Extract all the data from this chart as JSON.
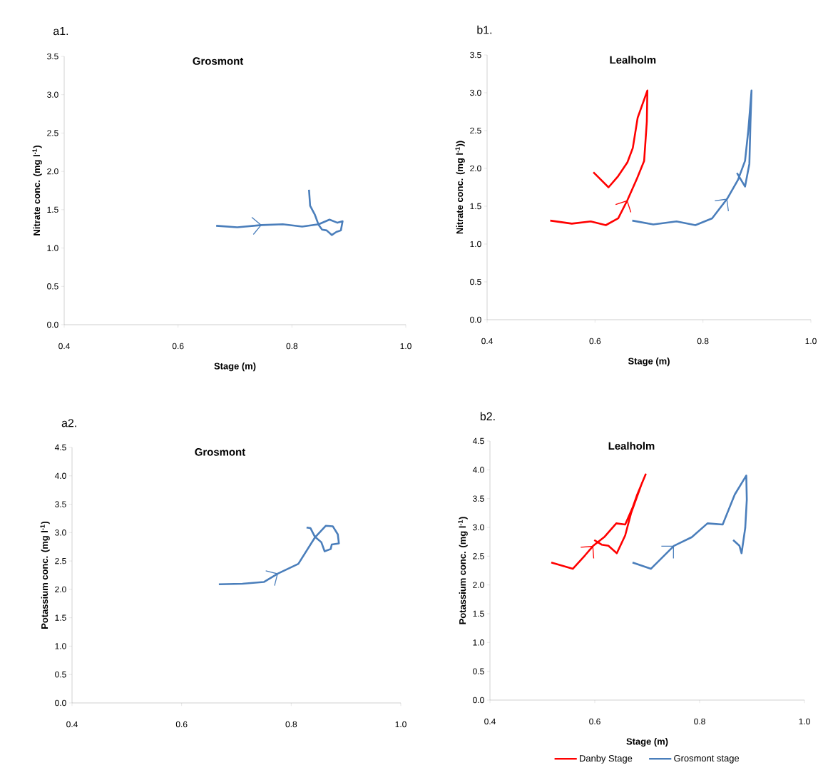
{
  "chart_data": [
    {
      "type": "line",
      "title": "Grosmont",
      "xlabel": "Stage (m)",
      "ylabel": "Nitrate conc. (mg l$^{-1}$)",
      "annotations": [
        "a1."
      ],
      "xlim": [
        0.4,
        1.0
      ],
      "ylim": [
        0,
        3.5
      ],
      "xticks": [
        {
          "value": 0.4,
          "label": "0.4"
        },
        {
          "value": 0.6,
          "label": "0.6"
        },
        {
          "value": 0.8,
          "label": "0.8"
        },
        {
          "value": 1.0,
          "label": "1.0"
        }
      ],
      "yticks": [
        {
          "value": 0,
          "label": "0.0"
        },
        0.5,
        {
          "value": 1,
          "label": "1.0"
        },
        1.5,
        {
          "value": 2,
          "label": "2.0"
        },
        2.5,
        {
          "value": 3,
          "label": "3.0"
        },
        3.5
      ],
      "series": [
        {
          "color": "#4a7ebb",
          "x": [
            0.667,
            0.704,
            0.747,
            0.784,
            0.818,
            0.847,
            0.866,
            0.88,
            0.889,
            0.886,
            0.878,
            0.87,
            0.861,
            0.853,
            0.847,
            0.84,
            0.832,
            0.83
          ],
          "values": [
            1.29,
            1.27,
            1.3,
            1.31,
            1.28,
            1.31,
            1.37,
            1.33,
            1.35,
            1.23,
            1.21,
            1.17,
            1.23,
            1.24,
            1.3,
            1.44,
            1.55,
            1.76
          ]
        }
      ]
    },
    {
      "type": "line",
      "title": "Lealholm",
      "xlabel": "Stage (m)",
      "ylabel": "Nitrate conc. (mg l$^{-1}$))",
      "annotations": [
        "b1."
      ],
      "xlim": [
        0.4,
        1.0
      ],
      "ylim": [
        0,
        3.5
      ],
      "xticks": [
        {
          "value": 0.4,
          "label": "0.4"
        },
        {
          "value": 0.6,
          "label": "0.6"
        },
        {
          "value": 0.8,
          "label": "0.8"
        },
        {
          "value": 1.0,
          "label": "1.0"
        }
      ],
      "yticks": [
        {
          "value": 0,
          "label": "0.0"
        },
        0.5,
        {
          "value": 1,
          "label": "1.0"
        },
        1.5,
        {
          "value": 2,
          "label": "2.0"
        },
        2.5,
        {
          "value": 3,
          "label": "3.0"
        },
        3.5
      ],
      "series": [
        {
          "color": "#ff0000",
          "x": [
            0.517,
            0.557,
            0.592,
            0.62,
            0.643,
            0.66,
            0.678,
            0.691,
            0.696,
            0.697,
            0.679,
            0.67,
            0.66,
            0.642,
            0.625,
            0.597
          ],
          "values": [
            1.31,
            1.27,
            1.3,
            1.25,
            1.34,
            1.58,
            1.87,
            2.1,
            2.62,
            3.03,
            2.67,
            2.27,
            2.08,
            1.89,
            1.75,
            1.95
          ]
        },
        {
          "color": "#4a7ebb",
          "x": [
            0.669,
            0.708,
            0.751,
            0.786,
            0.817,
            0.845,
            0.865,
            0.878,
            0.884,
            0.89,
            0.888,
            0.886,
            0.878,
            0.863
          ],
          "values": [
            1.31,
            1.26,
            1.3,
            1.25,
            1.34,
            1.6,
            1.85,
            2.1,
            2.5,
            3.03,
            2.6,
            2.06,
            1.76,
            1.94
          ]
        }
      ]
    },
    {
      "type": "line",
      "title": "Grosmont",
      "ylabel": "Potassium conc.  (mg l$^{-1}$)",
      "annotations": [
        "a2."
      ],
      "xlim": [
        0.4,
        1.0
      ],
      "ylim": [
        0,
        4.5
      ],
      "xticks": [
        {
          "value": 0.4,
          "label": "0.4"
        },
        {
          "value": 0.6,
          "label": "0.6"
        },
        {
          "value": 0.8,
          "label": "0.8"
        },
        {
          "value": 1.0,
          "label": "1.0"
        }
      ],
      "yticks": [
        {
          "value": 0,
          "label": "0.0"
        },
        0.5,
        {
          "value": 1,
          "label": "1.0"
        },
        1.5,
        {
          "value": 2,
          "label": "2.0"
        },
        2.5,
        {
          "value": 3,
          "label": "3.0"
        },
        3.5,
        {
          "value": 4,
          "label": "4.0"
        },
        4.5
      ],
      "series": [
        {
          "color": "#4a7ebb",
          "x": [
            0.668,
            0.711,
            0.75,
            0.776,
            0.813,
            0.843,
            0.863,
            0.876,
            0.885,
            0.887,
            0.874,
            0.872,
            0.861,
            0.855,
            0.843,
            0.835,
            0.828
          ],
          "values": [
            2.09,
            2.1,
            2.13,
            2.28,
            2.45,
            2.91,
            3.12,
            3.11,
            2.97,
            2.81,
            2.79,
            2.71,
            2.67,
            2.83,
            2.93,
            3.08,
            3.09
          ]
        }
      ]
    },
    {
      "type": "line",
      "title": "Lealholm",
      "xlabel": "Stage (m)",
      "ylabel": "Potassium conc.  (mg l$^{-1}$)",
      "annotations": [
        "b2."
      ],
      "legend": "bottom",
      "xlim": [
        0.4,
        1.0
      ],
      "ylim": [
        0,
        4.5
      ],
      "xticks": [
        {
          "value": 0.4,
          "label": "0.4"
        },
        {
          "value": 0.6,
          "label": "0.6"
        },
        {
          "value": 0.8,
          "label": "0.8"
        },
        {
          "value": 1.0,
          "label": "1.0"
        }
      ],
      "yticks": [
        {
          "value": 0,
          "label": "0.0"
        },
        0.5,
        {
          "value": 1,
          "label": "1.0"
        },
        1.5,
        {
          "value": 2,
          "label": "2.0"
        },
        2.5,
        {
          "value": 3,
          "label": "3.0"
        },
        3.5,
        {
          "value": 4,
          "label": "4.0"
        },
        4.5
      ],
      "series": [
        {
          "name": "Danby Stage",
          "color": "#ff0000",
          "x": [
            0.517,
            0.558,
            0.581,
            0.597,
            0.619,
            0.641,
            0.658,
            0.672,
            0.681,
            0.697,
            0.69,
            0.669,
            0.658,
            0.642,
            0.626,
            0.613,
            0.599
          ],
          "values": [
            2.39,
            2.28,
            2.51,
            2.68,
            2.84,
            3.07,
            3.05,
            3.34,
            3.57,
            3.92,
            3.77,
            3.24,
            2.86,
            2.55,
            2.68,
            2.7,
            2.78
          ]
        },
        {
          "name": "Grosmont stage",
          "color": "#4a7ebb",
          "x": [
            0.672,
            0.707,
            0.751,
            0.785,
            0.815,
            0.844,
            0.867,
            0.889,
            0.89,
            0.887,
            0.88,
            0.876,
            0.864
          ],
          "values": [
            2.39,
            2.28,
            2.68,
            2.83,
            3.07,
            3.05,
            3.57,
            3.9,
            3.48,
            2.99,
            2.55,
            2.68,
            2.78
          ]
        }
      ]
    }
  ]
}
